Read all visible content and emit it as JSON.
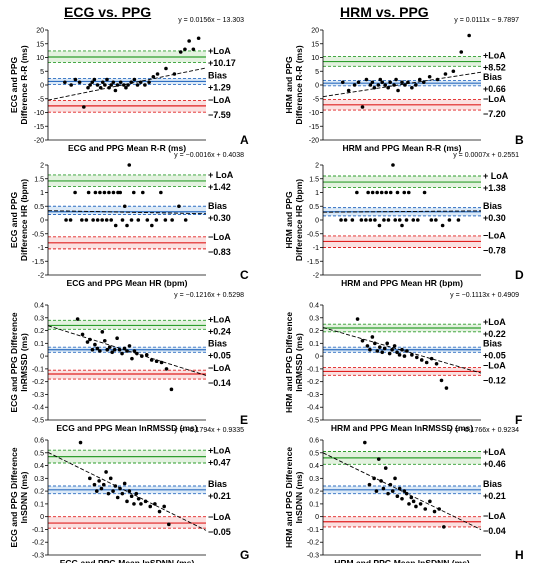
{
  "columns": [
    "ECG vs. PPG",
    "HRM vs. PPG"
  ],
  "chart_data": [
    {
      "panel": "A",
      "type": "scatter",
      "xlabel": "ECG and PPG Mean R-R (ms)",
      "ylabel": [
        "ECG and PPG",
        "Difference R-R (ms)"
      ],
      "equation": "y = 0.0156x − 13.303",
      "ylim": [
        -20,
        20
      ],
      "yticks": [
        -20,
        -15,
        -10,
        -5,
        0,
        5,
        10,
        15,
        20
      ],
      "bias": 1.29,
      "upper_loa": 10.17,
      "lower_loa": -7.59,
      "bias_ci": [
        0.2,
        2.4
      ],
      "upper_ci": [
        8.2,
        12.4
      ],
      "lower_ci": [
        -9.9,
        -5.6
      ],
      "labels": {
        "upper_name": "+LoA",
        "upper_value": "+10.17",
        "bias_name": "Bias",
        "bias_value": "+1.29",
        "lower_name": "−LoA",
        "lower_value": "−7.59"
      },
      "trend": {
        "slope": 0.0156,
        "intercept": -13.303,
        "x_range": [
          500,
          1250
        ]
      },
      "x": [
        580,
        610,
        630,
        650,
        670,
        690,
        700,
        710,
        720,
        735,
        750,
        760,
        770,
        780,
        790,
        800,
        810,
        820,
        830,
        845,
        860,
        870,
        880,
        895,
        910,
        925,
        940,
        960,
        980,
        1000,
        1020,
        1060,
        1100,
        1130,
        1150,
        1170,
        1190,
        1215
      ],
      "y": [
        1,
        0,
        2,
        1,
        -8,
        -1,
        0,
        1,
        2,
        0,
        -1,
        1,
        0,
        2,
        -1,
        0,
        1,
        -2,
        0,
        1,
        0,
        -1,
        0,
        1,
        2,
        0,
        1,
        0,
        1,
        3,
        4,
        6,
        4,
        12,
        13,
        16,
        13,
        17
      ]
    },
    {
      "panel": "B",
      "type": "scatter",
      "xlabel": "HRM and PPG Mean R-R (ms)",
      "ylabel": [
        "HRM and PPG",
        "Difference R-R (ms)"
      ],
      "equation": "y = 0.0111x − 9.7897",
      "ylim": [
        -20,
        20
      ],
      "yticks": [
        -20,
        -15,
        -10,
        -5,
        0,
        5,
        10,
        15,
        20
      ],
      "bias": 0.66,
      "upper_loa": 8.52,
      "lower_loa": -7.2,
      "bias_ci": [
        -0.3,
        1.6
      ],
      "upper_ci": [
        6.8,
        10.4
      ],
      "lower_ci": [
        -9.1,
        -5.3
      ],
      "labels": {
        "upper_name": "+LoA",
        "upper_value": "+8.52",
        "bias_name": "Bias",
        "bias_value": "+0.66",
        "lower_name": "−LoA",
        "lower_value": "−7.20"
      },
      "trend": {
        "slope": 0.0111,
        "intercept": -9.7897,
        "x_range": [
          500,
          1300
        ]
      },
      "x": [
        600,
        630,
        660,
        680,
        700,
        720,
        740,
        750,
        760,
        780,
        790,
        800,
        815,
        830,
        840,
        860,
        870,
        880,
        900,
        915,
        930,
        950,
        970,
        990,
        1010,
        1040,
        1080,
        1120,
        1160,
        1200,
        1240
      ],
      "y": [
        1,
        -2,
        0,
        1,
        -8,
        2,
        0,
        1,
        -1,
        0,
        2,
        1,
        0,
        -1,
        1,
        0,
        2,
        -2,
        1,
        0,
        1,
        -1,
        0,
        2,
        1,
        3,
        2,
        4,
        5,
        12,
        18
      ]
    },
    {
      "panel": "C",
      "type": "scatter",
      "xlabel": "ECG and PPG Mean HR (bpm)",
      "ylabel": [
        "ECG and PPG",
        "Difference HR (bpm)"
      ],
      "equation": "y = −0.0016x + 0.4038",
      "ylim": [
        -2,
        2
      ],
      "yticks": [
        -2,
        -1.5,
        -1,
        -0.5,
        0,
        0.5,
        1,
        1.5,
        2
      ],
      "bias": 0.3,
      "upper_loa": 1.42,
      "lower_loa": -0.83,
      "bias_ci": [
        0.2,
        0.5
      ],
      "upper_ci": [
        1.22,
        1.64
      ],
      "lower_ci": [
        -1.05,
        -0.61
      ],
      "labels": {
        "upper_name": "+ LoA",
        "upper_value": "+1.42",
        "bias_name": "Bias",
        "bias_value": "+0.30",
        "lower_name": "−LoA",
        "lower_value": "−0.83"
      },
      "trend": {
        "slope": -0.0016,
        "intercept": 0.4038,
        "x_range": [
          40,
          110
        ]
      },
      "x": [
        48,
        50,
        52,
        55,
        57,
        58,
        60,
        61,
        62,
        63,
        64,
        65,
        66,
        67,
        68,
        69,
        70,
        71,
        72,
        73,
        74,
        75,
        76,
        77,
        78,
        80,
        82,
        84,
        86,
        88,
        90,
        92,
        95,
        98,
        101
      ],
      "y": [
        0,
        0,
        1,
        0,
        0,
        1,
        0,
        1,
        0,
        1,
        0,
        1,
        0,
        1,
        0,
        1,
        -0.2,
        1,
        1,
        0,
        0.5,
        -0.2,
        2,
        0,
        1,
        0,
        1,
        0,
        -0.2,
        0,
        1,
        0,
        0,
        0.5,
        0
      ]
    },
    {
      "panel": "D",
      "type": "scatter",
      "xlabel": "HRM and PPG Mean HR (bpm)",
      "ylabel": [
        "HRM and PPG",
        "Difference HR (bpm)"
      ],
      "equation": "y = 0.0007x + 0.2551",
      "ylim": [
        -2,
        2
      ],
      "yticks": [
        -2,
        -1.5,
        -1,
        -0.5,
        0,
        0.5,
        1,
        1.5,
        2
      ],
      "bias": 0.3,
      "upper_loa": 1.38,
      "lower_loa": -0.78,
      "bias_ci": [
        0.15,
        0.45
      ],
      "upper_ci": [
        1.18,
        1.6
      ],
      "lower_ci": [
        -1.0,
        -0.58
      ],
      "labels": {
        "upper_name": "+ LoA",
        "upper_value": "+1.38",
        "bias_name": "Bias",
        "bias_value": "+0.30",
        "lower_name": "−LoA",
        "lower_value": "−0.78"
      },
      "trend": {
        "slope": 0.0007,
        "intercept": 0.2551,
        "x_range": [
          40,
          110
        ]
      },
      "x": [
        48,
        50,
        53,
        55,
        57,
        59,
        60,
        61,
        62,
        63,
        64,
        65,
        66,
        67,
        68,
        69,
        70,
        71,
        72,
        73,
        74,
        75,
        76,
        77,
        78,
        80,
        82,
        85,
        88,
        90,
        93,
        96,
        100
      ],
      "y": [
        0,
        0,
        0,
        1,
        0,
        0,
        1,
        0,
        1,
        0,
        1,
        -0.2,
        1,
        0,
        1,
        0,
        1,
        2,
        0,
        1,
        0,
        -0.2,
        1,
        0,
        1,
        0,
        0,
        1,
        0,
        0,
        -0.2,
        0,
        0
      ]
    },
    {
      "panel": "E",
      "type": "scatter",
      "xlabel": "ECG and PPG Mean lnRMSSD (ms)",
      "ylabel": [
        "ECG and PPG Difference",
        "lnRMSSD (ms)"
      ],
      "equation": "y = −0.1216x + 0.5298",
      "ylim": [
        -0.5,
        0.4
      ],
      "yticks": [
        -0.5,
        -0.4,
        -0.3,
        -0.2,
        -0.1,
        0,
        0.1,
        0.2,
        0.3,
        0.4
      ],
      "bias": 0.05,
      "upper_loa": 0.24,
      "lower_loa": -0.14,
      "bias_ci": [
        0.03,
        0.07
      ],
      "upper_ci": [
        0.21,
        0.28
      ],
      "lower_ci": [
        -0.18,
        -0.11
      ],
      "labels": {
        "upper_name": "+LoA",
        "upper_value": "+0.24",
        "bias_name": "Bias",
        "bias_value": "+0.05",
        "lower_name": "−LoA",
        "lower_value": "−0.14"
      },
      "trend": {
        "slope": -0.1216,
        "intercept": 0.5298,
        "x_range": [
          2.4,
          5.6
        ]
      },
      "x": [
        3.0,
        3.1,
        3.2,
        3.25,
        3.3,
        3.35,
        3.4,
        3.45,
        3.5,
        3.55,
        3.6,
        3.65,
        3.7,
        3.75,
        3.8,
        3.85,
        3.9,
        3.95,
        4.0,
        4.05,
        4.1,
        4.15,
        4.2,
        4.3,
        4.4,
        4.5,
        4.6,
        4.7,
        4.8,
        4.9
      ],
      "y": [
        0.29,
        0.17,
        0.11,
        0.13,
        0.05,
        0.09,
        0.06,
        0.04,
        0.19,
        0.12,
        0.05,
        0.07,
        0.03,
        0.05,
        0.14,
        0.05,
        0.02,
        0.06,
        0.04,
        0.08,
        -0.02,
        0.04,
        0.02,
        0.0,
        0.01,
        -0.03,
        -0.04,
        -0.05,
        -0.1,
        -0.26
      ]
    },
    {
      "panel": "F",
      "type": "scatter",
      "xlabel": "HRM and PPG Mean lnRMSSD (ms)",
      "ylabel": [
        "HRM and PPG Difference",
        "lnRMSSD (ms)"
      ],
      "equation": "y = −0.1113x + 0.4909",
      "ylim": [
        -0.5,
        0.4
      ],
      "yticks": [
        -0.5,
        -0.4,
        -0.3,
        -0.2,
        -0.1,
        0,
        0.1,
        0.2,
        0.3,
        0.4
      ],
      "bias": 0.05,
      "upper_loa": 0.22,
      "lower_loa": -0.12,
      "bias_ci": [
        0.03,
        0.07
      ],
      "upper_ci": [
        0.19,
        0.25
      ],
      "lower_ci": [
        -0.15,
        -0.09
      ],
      "labels": {
        "upper_name": "+LoA",
        "upper_value": "+0.22",
        "bias_name": "Bias",
        "bias_value": "+0.05",
        "lower_name": "−LoA",
        "lower_value": "−0.12"
      },
      "trend": {
        "slope": -0.1113,
        "intercept": 0.4909,
        "x_range": [
          2.4,
          5.6
        ]
      },
      "x": [
        3.1,
        3.2,
        3.3,
        3.35,
        3.4,
        3.45,
        3.5,
        3.55,
        3.6,
        3.65,
        3.7,
        3.75,
        3.8,
        3.85,
        3.9,
        3.95,
        4.0,
        4.05,
        4.1,
        4.2,
        4.3,
        4.4,
        4.5,
        4.6,
        4.7,
        4.8,
        4.9
      ],
      "y": [
        0.29,
        0.12,
        0.08,
        0.05,
        0.15,
        0.1,
        0.04,
        0.07,
        0.03,
        0.06,
        0.1,
        0.02,
        0.05,
        0.08,
        0.03,
        0.01,
        0.05,
        0.0,
        0.04,
        0.01,
        -0.01,
        -0.03,
        -0.05,
        -0.02,
        -0.06,
        -0.19,
        -0.25
      ]
    },
    {
      "panel": "G",
      "type": "scatter",
      "xlabel": "ECG and PPG Mean lnSDNN (ms)",
      "ylabel": [
        "ECG and PPG Difference",
        "lnSDNN (ms)"
      ],
      "equation": "y = −0.1794x + 0.9335",
      "ylim": [
        -0.3,
        0.6
      ],
      "yticks": [
        -0.3,
        -0.2,
        -0.1,
        0,
        0.1,
        0.2,
        0.3,
        0.4,
        0.5,
        0.6
      ],
      "bias": 0.21,
      "upper_loa": 0.47,
      "lower_loa": -0.05,
      "bias_ci": [
        0.18,
        0.24
      ],
      "upper_ci": [
        0.42,
        0.52
      ],
      "lower_ci": [
        -0.09,
        0.0
      ],
      "labels": {
        "upper_name": "+LoA",
        "upper_value": "+0.47",
        "bias_name": "Bias",
        "bias_value": "+0.21",
        "lower_name": "−LoA",
        "lower_value": "−0.05"
      },
      "trend": {
        "slope": -0.1794,
        "intercept": 0.9335,
        "x_range": [
          2.4,
          5.8
        ]
      },
      "x": [
        3.1,
        3.3,
        3.4,
        3.45,
        3.5,
        3.55,
        3.6,
        3.65,
        3.7,
        3.75,
        3.8,
        3.85,
        3.9,
        3.95,
        4.0,
        4.05,
        4.1,
        4.15,
        4.2,
        4.25,
        4.3,
        4.35,
        4.4,
        4.5,
        4.6,
        4.7,
        4.8,
        4.9,
        5.0
      ],
      "y": [
        0.58,
        0.3,
        0.25,
        0.2,
        0.28,
        0.22,
        0.25,
        0.35,
        0.18,
        0.3,
        0.2,
        0.24,
        0.15,
        0.22,
        0.18,
        0.26,
        0.12,
        0.2,
        0.16,
        0.1,
        0.18,
        0.14,
        0.1,
        0.12,
        0.08,
        0.1,
        0.04,
        0.08,
        -0.06
      ]
    },
    {
      "panel": "H",
      "type": "scatter",
      "xlabel": "HRM and PPG Mean lnSDNN (ms)",
      "ylabel": [
        "HRM and PPG Difference",
        "lnSDNN (ms)"
      ],
      "equation": "y = −0.1766x + 0.9234",
      "ylim": [
        -0.3,
        0.6
      ],
      "yticks": [
        -0.3,
        -0.2,
        -0.1,
        0,
        0.1,
        0.2,
        0.3,
        0.4,
        0.5,
        0.6
      ],
      "bias": 0.21,
      "upper_loa": 0.46,
      "lower_loa": -0.04,
      "bias_ci": [
        0.18,
        0.24
      ],
      "upper_ci": [
        0.41,
        0.51
      ],
      "lower_ci": [
        -0.08,
        0.0
      ],
      "labels": {
        "upper_name": "+LoA",
        "upper_value": "+0.46",
        "bias_name": "Bias",
        "bias_value": "+0.21",
        "lower_name": "−LoA",
        "lower_value": "−0.04"
      },
      "trend": {
        "slope": -0.1766,
        "intercept": 0.9234,
        "x_range": [
          2.4,
          5.8
        ]
      },
      "x": [
        3.3,
        3.4,
        3.5,
        3.55,
        3.6,
        3.65,
        3.7,
        3.75,
        3.8,
        3.85,
        3.9,
        3.95,
        4.0,
        4.05,
        4.1,
        4.15,
        4.2,
        4.25,
        4.3,
        4.35,
        4.4,
        4.5,
        4.6,
        4.7,
        4.8,
        4.9,
        5.0
      ],
      "y": [
        0.58,
        0.25,
        0.3,
        0.2,
        0.45,
        0.28,
        0.22,
        0.38,
        0.18,
        0.25,
        0.2,
        0.3,
        0.16,
        0.22,
        0.14,
        0.2,
        0.18,
        0.1,
        0.15,
        0.12,
        0.08,
        0.1,
        0.06,
        0.12,
        0.04,
        0.06,
        -0.08
      ]
    }
  ]
}
